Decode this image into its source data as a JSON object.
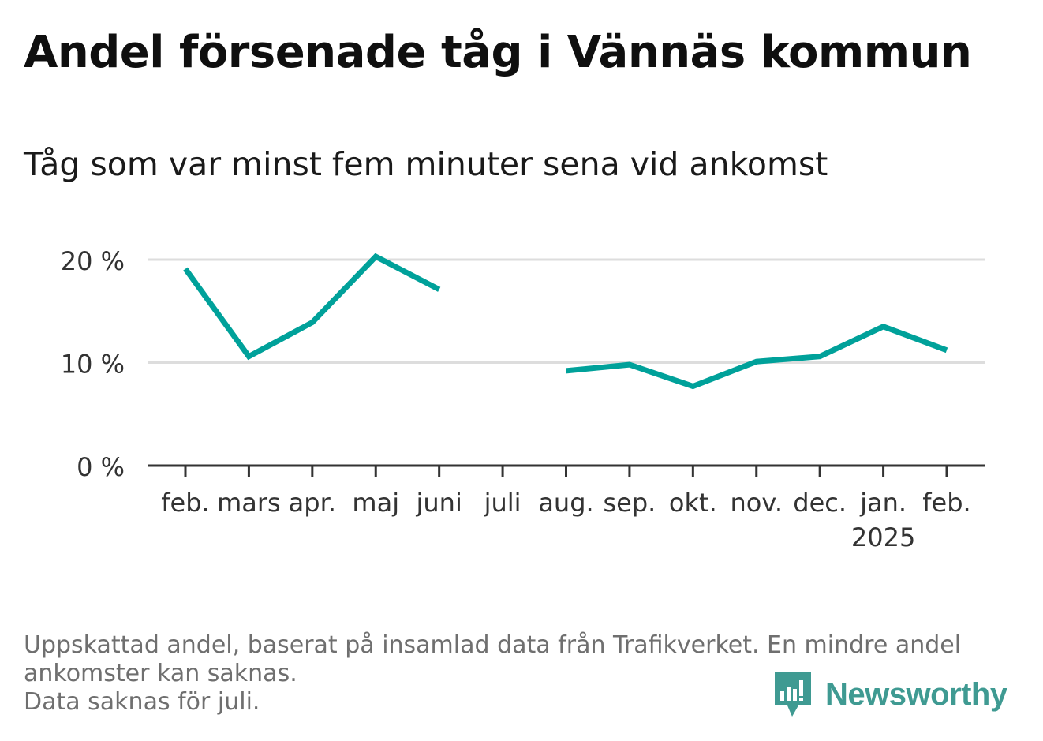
{
  "title": "Andel försenade tåg i Vännäs kommun",
  "subtitle": "Tåg som var minst fem minuter sena vid ankomst",
  "footnote": {
    "line1": "Uppskattad andel, baserat på insamlad data från Trafikverket. En mindre andel",
    "line2": "ankomster kan saknas.",
    "line3": "Data saknas för juli."
  },
  "brand": {
    "name": "Newsworthy",
    "icon": "newsworthy-logo-icon",
    "color": "#3f9a92"
  },
  "chart_data": {
    "type": "line",
    "categories": [
      "feb.",
      "mars",
      "apr.",
      "maj",
      "juni",
      "juli",
      "aug.",
      "sep.",
      "okt.",
      "nov.",
      "dec.",
      "jan.",
      "feb."
    ],
    "year_labels": [
      {
        "index": 11,
        "label": "2025"
      }
    ],
    "series": [
      {
        "values": [
          19.1,
          10.6,
          13.9,
          20.3,
          17.1,
          null,
          9.2,
          9.8,
          7.7,
          10.1,
          10.6,
          13.5,
          11.2
        ],
        "color": "#00a19a"
      }
    ],
    "y_ticks": [
      {
        "value": 0,
        "label": "0 %"
      },
      {
        "value": 10,
        "label": "10 %"
      },
      {
        "value": 20,
        "label": "20 %"
      }
    ],
    "ylim": [
      0,
      20
    ],
    "grid": true,
    "gridline_color": "#dddddd",
    "axis_color": "#333333"
  }
}
